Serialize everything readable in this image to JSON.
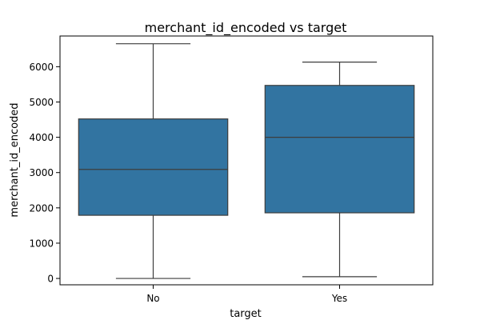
{
  "chart_data": {
    "type": "box",
    "title": "merchant_id_encoded vs target",
    "xlabel": "target",
    "ylabel": "merchant_id_encoded",
    "categories": [
      "No",
      "Yes"
    ],
    "ylim": [
      -180,
      6870
    ],
    "yticks": [
      0,
      1000,
      2000,
      3000,
      4000,
      5000,
      6000
    ],
    "grid": false,
    "legend": "none",
    "color": "#3274a1",
    "line_color": "#3d3d3d",
    "boxes": [
      {
        "category": "No",
        "whisker_low": 0,
        "q1": 1790,
        "median": 3090,
        "q3": 4520,
        "whisker_high": 6650
      },
      {
        "category": "Yes",
        "whisker_low": 50,
        "q1": 1860,
        "median": 4000,
        "q3": 5470,
        "whisker_high": 6130
      }
    ]
  }
}
